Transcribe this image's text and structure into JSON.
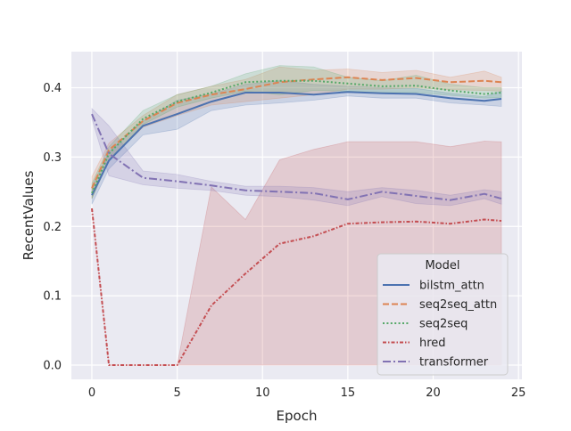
{
  "chart_data": {
    "type": "line",
    "title": "",
    "xlabel": "Epoch",
    "ylabel": "RecentValues",
    "xlim": [
      -1.2,
      25.2
    ],
    "ylim": [
      -0.0205,
      0.452
    ],
    "xticks": [
      0,
      5,
      10,
      15,
      20,
      25
    ],
    "yticks": [
      0.0,
      0.1,
      0.2,
      0.3,
      0.4
    ],
    "xtick_labels": [
      "0",
      "5",
      "10",
      "15",
      "20",
      "25"
    ],
    "ytick_labels": [
      "0.0",
      "0.1",
      "0.2",
      "0.3",
      "0.4"
    ],
    "grid": true,
    "background": "#eaeaf2",
    "legend": {
      "title": "Model",
      "placement": "lower-right"
    },
    "x": [
      0,
      1,
      3,
      5,
      7,
      9,
      11,
      13,
      15,
      17,
      19,
      21,
      23,
      24
    ],
    "series": [
      {
        "name": "bilstm_attn",
        "color": "#4c72b0",
        "dash": "solid",
        "values": [
          0.245,
          0.295,
          0.345,
          0.362,
          0.38,
          0.393,
          0.393,
          0.39,
          0.394,
          0.392,
          0.391,
          0.385,
          0.381,
          0.384
        ],
        "ci_low": [
          0.232,
          0.283,
          0.332,
          0.34,
          0.367,
          0.375,
          0.378,
          0.382,
          0.388,
          0.385,
          0.385,
          0.378,
          0.375,
          0.373
        ],
        "ci_high": [
          0.258,
          0.307,
          0.352,
          0.382,
          0.391,
          0.405,
          0.41,
          0.405,
          0.402,
          0.4,
          0.399,
          0.392,
          0.387,
          0.395
        ]
      },
      {
        "name": "seq2seq_attn",
        "color": "#dd8452",
        "dash": "dashed",
        "values": [
          0.255,
          0.31,
          0.352,
          0.378,
          0.39,
          0.398,
          0.408,
          0.412,
          0.415,
          0.411,
          0.414,
          0.408,
          0.41,
          0.408
        ],
        "ci_low": [
          0.24,
          0.296,
          0.343,
          0.36,
          0.375,
          0.38,
          0.385,
          0.39,
          0.398,
          0.398,
          0.4,
          0.397,
          0.396,
          0.395
        ],
        "ci_high": [
          0.272,
          0.32,
          0.36,
          0.39,
          0.402,
          0.412,
          0.43,
          0.425,
          0.427,
          0.422,
          0.425,
          0.415,
          0.424,
          0.415
        ]
      },
      {
        "name": "seq2seq",
        "color": "#55a868",
        "dash": "dotted",
        "values": [
          0.248,
          0.305,
          0.355,
          0.38,
          0.393,
          0.408,
          0.41,
          0.41,
          0.406,
          0.402,
          0.403,
          0.396,
          0.391,
          0.393
        ],
        "ci_low": [
          0.24,
          0.295,
          0.347,
          0.372,
          0.385,
          0.395,
          0.39,
          0.396,
          0.395,
          0.393,
          0.393,
          0.389,
          0.385,
          0.386
        ],
        "ci_high": [
          0.262,
          0.315,
          0.367,
          0.39,
          0.402,
          0.42,
          0.432,
          0.43,
          0.415,
          0.41,
          0.418,
          0.405,
          0.4,
          0.4
        ]
      },
      {
        "name": "hred",
        "color": "#c44e52",
        "dash": "dashdot-dense",
        "values": [
          0.226,
          0.0,
          0.0,
          0.0,
          0.086,
          0.132,
          0.175,
          0.186,
          0.204,
          0.206,
          0.207,
          0.204,
          0.21,
          0.208
        ],
        "ci_low": [
          0.226,
          0.0,
          0.0,
          0.0,
          0.0,
          0.0,
          0.0,
          0.0,
          0.0,
          0.0,
          0.0,
          0.0,
          0.0,
          0.0
        ],
        "ci_high": [
          0.226,
          0.0,
          0.0,
          0.0,
          0.257,
          0.21,
          0.296,
          0.311,
          0.322,
          0.322,
          0.322,
          0.315,
          0.323,
          0.322
        ]
      },
      {
        "name": "transformer",
        "color": "#8172b3",
        "dash": "dashdot",
        "values": [
          0.362,
          0.305,
          0.27,
          0.265,
          0.259,
          0.252,
          0.25,
          0.248,
          0.239,
          0.25,
          0.244,
          0.238,
          0.247,
          0.24
        ],
        "ci_low": [
          0.355,
          0.273,
          0.26,
          0.255,
          0.252,
          0.245,
          0.243,
          0.238,
          0.23,
          0.243,
          0.233,
          0.23,
          0.24,
          0.232
        ],
        "ci_high": [
          0.37,
          0.345,
          0.28,
          0.275,
          0.265,
          0.258,
          0.258,
          0.256,
          0.25,
          0.256,
          0.252,
          0.245,
          0.253,
          0.25
        ]
      }
    ]
  }
}
